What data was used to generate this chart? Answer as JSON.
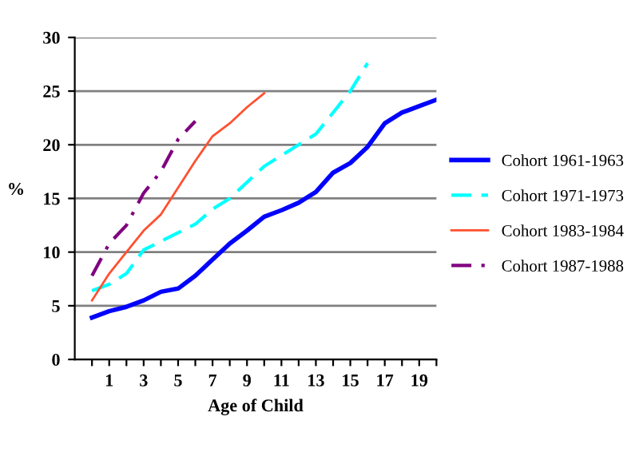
{
  "chart_data": {
    "type": "line",
    "xlabel": "Age of Child",
    "ylabel": "%",
    "xlim": [
      -1,
      20
    ],
    "xticks": [
      {
        "value": 0,
        "label": null
      },
      1,
      {
        "value": 2,
        "label": null
      },
      3,
      {
        "value": 4,
        "label": null
      },
      5,
      {
        "value": 6,
        "label": null
      },
      7,
      {
        "value": 8,
        "label": null
      },
      9,
      {
        "value": 10,
        "label": null
      },
      11,
      {
        "value": 12,
        "label": null
      },
      13,
      {
        "value": 14,
        "label": null
      },
      15,
      {
        "value": 16,
        "label": null
      },
      17,
      {
        "value": 18,
        "label": null
      },
      19,
      {
        "value": 20,
        "label": null
      }
    ],
    "ylim": [
      0,
      30
    ],
    "yticks": [
      0,
      5,
      10,
      15,
      20,
      25,
      30
    ],
    "grid": "y",
    "legend": "right",
    "marker": "none",
    "series": [
      {
        "name": "Cohort 1961-1963",
        "color": "#0000ff",
        "line_style": "solid",
        "x": [
          0,
          1,
          2,
          3,
          4,
          5,
          6,
          7,
          8,
          9,
          10,
          11,
          12,
          13,
          14,
          15,
          16,
          17,
          18,
          19,
          20
        ],
        "values": [
          3.9,
          4.5,
          4.9,
          5.5,
          6.3,
          6.6,
          7.8,
          9.3,
          10.8,
          12,
          13.3,
          13.9,
          14.6,
          15.6,
          17.4,
          18.3,
          19.8,
          22,
          23,
          23.6,
          24.2
        ]
      },
      {
        "name": "Cohort 1971-1973",
        "color": "#00ffff",
        "line_style": "dashed",
        "x": [
          0,
          1,
          2,
          3,
          4,
          5,
          6,
          7,
          8,
          9,
          10,
          11,
          12,
          13,
          14,
          15,
          16
        ],
        "values": [
          6.4,
          7,
          8,
          10.2,
          11,
          11.8,
          12.6,
          14,
          15,
          16.5,
          18,
          19,
          20,
          21,
          23,
          25,
          27.6
        ]
      },
      {
        "name": "Cohort 1983-1984",
        "color": "#ff5030",
        "line_style": "solid",
        "x": [
          0,
          1,
          2,
          3,
          4,
          5,
          6,
          7,
          8,
          9,
          10
        ],
        "values": [
          5.5,
          8,
          10,
          12,
          13.5,
          16,
          18.5,
          20.8,
          22,
          23.5,
          24.8
        ]
      },
      {
        "name": "Cohort 1987-1988",
        "color": "#800080",
        "line_style": "dashdot",
        "x": [
          0,
          1,
          2,
          3,
          4,
          5,
          6
        ],
        "values": [
          7.8,
          10.8,
          12.5,
          15.5,
          17.5,
          20.5,
          22.2
        ]
      }
    ]
  }
}
